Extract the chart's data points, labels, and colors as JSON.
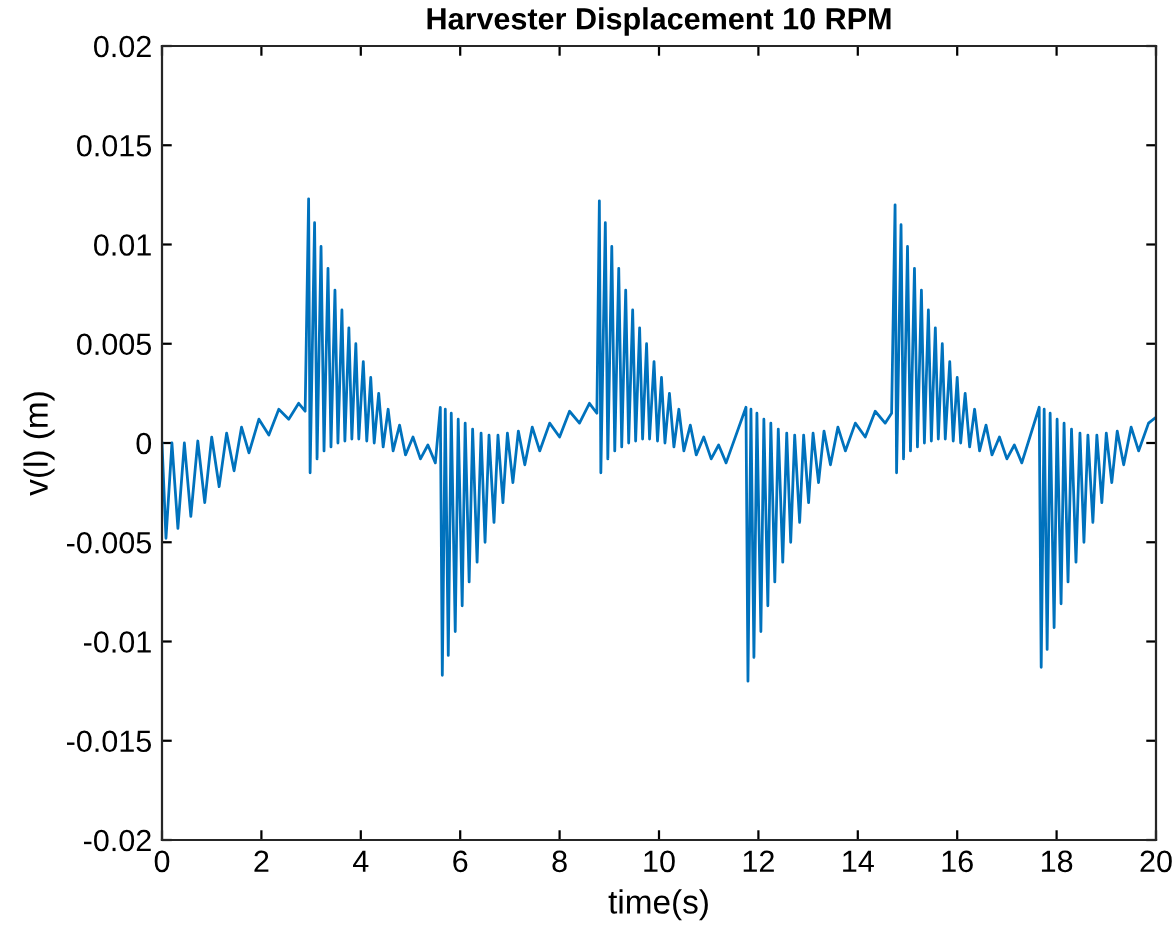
{
  "chart_data": {
    "type": "line",
    "title": "Harvester Displacement 10 RPM",
    "xlabel": "time(s)",
    "ylabel": "v(l) (m)",
    "xlim": [
      0,
      20
    ],
    "ylim": [
      -0.02,
      0.02
    ],
    "xticks": [
      0,
      2,
      4,
      6,
      8,
      10,
      12,
      14,
      16,
      18,
      20
    ],
    "yticks": [
      {
        "value": -0.02,
        "label": "-0.02"
      },
      {
        "value": -0.015,
        "label": "-0.015"
      },
      {
        "value": -0.01,
        "label": "-0.01"
      },
      {
        "value": -0.005,
        "label": "-0.005"
      },
      {
        "value": 0,
        "label": "0"
      },
      {
        "value": 0.005,
        "label": "0.005"
      },
      {
        "value": 0.01,
        "label": "0.01"
      },
      {
        "value": 0.015,
        "label": "0.015"
      },
      {
        "value": 0.02,
        "label": "0.02"
      }
    ],
    "grid": false,
    "marker": "none",
    "line_style": "solid",
    "series": [
      {
        "color": "#0072bd",
        "x": [
          0,
          0.08,
          0.2,
          0.32,
          0.45,
          0.58,
          0.72,
          0.86,
          1.0,
          1.15,
          1.3,
          1.45,
          1.6,
          1.75,
          1.95,
          2.15,
          2.35,
          2.55,
          2.75,
          2.88,
          2.95,
          2.98,
          3.07,
          3.12,
          3.2,
          3.26,
          3.34,
          3.4,
          3.48,
          3.54,
          3.62,
          3.68,
          3.76,
          3.82,
          3.9,
          3.96,
          4.05,
          4.12,
          4.2,
          4.27,
          4.36,
          4.45,
          4.55,
          4.65,
          4.78,
          4.9,
          5.05,
          5.2,
          5.35,
          5.5,
          5.6,
          5.64,
          5.7,
          5.76,
          5.82,
          5.9,
          5.96,
          6.04,
          6.1,
          6.18,
          6.25,
          6.34,
          6.42,
          6.5,
          6.58,
          6.68,
          6.76,
          6.86,
          6.95,
          7.06,
          7.17,
          7.3,
          7.45,
          7.6,
          7.8,
          8.0,
          8.2,
          8.4,
          8.6,
          8.75,
          8.8,
          8.83,
          8.92,
          8.97,
          9.05,
          9.11,
          9.19,
          9.25,
          9.33,
          9.39,
          9.47,
          9.53,
          9.61,
          9.67,
          9.75,
          9.81,
          9.9,
          9.97,
          10.05,
          10.12,
          10.21,
          10.3,
          10.4,
          10.5,
          10.63,
          10.75,
          10.9,
          11.05,
          11.2,
          11.35,
          11.75,
          11.79,
          11.85,
          11.91,
          11.97,
          12.05,
          12.11,
          12.19,
          12.25,
          12.33,
          12.4,
          12.49,
          12.57,
          12.65,
          12.73,
          12.83,
          12.91,
          13.01,
          13.1,
          13.21,
          13.32,
          13.45,
          13.6,
          13.75,
          13.95,
          14.15,
          14.35,
          14.55,
          14.68,
          14.75,
          14.78,
          14.87,
          14.92,
          15.0,
          15.06,
          15.14,
          15.2,
          15.28,
          15.34,
          15.42,
          15.48,
          15.56,
          15.62,
          15.7,
          15.76,
          15.85,
          15.92,
          16.0,
          16.07,
          16.16,
          16.25,
          16.35,
          16.45,
          16.58,
          16.7,
          16.85,
          17.0,
          17.15,
          17.3,
          17.65,
          17.69,
          17.75,
          17.81,
          17.87,
          17.95,
          18.01,
          18.09,
          18.15,
          18.23,
          18.3,
          18.39,
          18.47,
          18.55,
          18.63,
          18.73,
          18.81,
          18.91,
          19.0,
          19.11,
          19.22,
          19.35,
          19.5,
          19.65,
          19.85,
          20.0
        ],
        "values": [
          0,
          -0.0048,
          0,
          -0.0043,
          0,
          -0.0037,
          0.0001,
          -0.003,
          0.0003,
          -0.0022,
          0.0005,
          -0.0014,
          0.0008,
          -0.0005,
          0.0012,
          0.0004,
          0.0017,
          0.0012,
          0.002,
          0.0016,
          0.0123,
          -0.0015,
          0.0111,
          -0.0008,
          0.0099,
          -0.0004,
          0.0088,
          -0.0002,
          0.0077,
          0,
          0.0067,
          0.0001,
          0.0058,
          0.0002,
          0.005,
          0.0002,
          0.0041,
          0.0001,
          0.0033,
          0,
          0.0025,
          -0.0002,
          0.0017,
          -0.0004,
          0.0009,
          -0.0006,
          0.0003,
          -0.0008,
          -0.0001,
          -0.001,
          0.0018,
          -0.0117,
          0.0017,
          -0.0107,
          0.0015,
          -0.0095,
          0.0012,
          -0.0082,
          0.001,
          -0.007,
          0.0007,
          -0.006,
          0.0005,
          -0.005,
          0.0004,
          -0.004,
          0.0004,
          -0.003,
          0.0005,
          -0.002,
          0.0006,
          -0.0011,
          0.0008,
          -0.0004,
          0.001,
          0.0003,
          0.0016,
          0.001,
          0.002,
          0.0015,
          0.0122,
          -0.0015,
          0.0111,
          -0.0008,
          0.0099,
          -0.0004,
          0.0088,
          -0.0002,
          0.0077,
          0,
          0.0067,
          0.0001,
          0.0058,
          0.0002,
          0.005,
          0.0002,
          0.0041,
          0.0001,
          0.0033,
          0,
          0.0025,
          -0.0002,
          0.0017,
          -0.0004,
          0.0009,
          -0.0006,
          0.0003,
          -0.0008,
          -0.0001,
          -0.001,
          0.0018,
          -0.012,
          0.0017,
          -0.0108,
          0.0015,
          -0.0095,
          0.0012,
          -0.0082,
          0.001,
          -0.007,
          0.0007,
          -0.006,
          0.0005,
          -0.005,
          0.0004,
          -0.004,
          0.0004,
          -0.003,
          0.0005,
          -0.002,
          0.0006,
          -0.0011,
          0.0008,
          -0.0004,
          0.001,
          0.0003,
          0.0016,
          0.001,
          0.0015,
          0.012,
          -0.0015,
          0.011,
          -0.0008,
          0.0099,
          -0.0004,
          0.0088,
          -0.0002,
          0.0077,
          0,
          0.0067,
          0.0001,
          0.0058,
          0.0002,
          0.005,
          0.0002,
          0.0041,
          0.0001,
          0.0033,
          0,
          0.0025,
          -0.0002,
          0.0017,
          -0.0004,
          0.0009,
          -0.0006,
          0.0003,
          -0.0008,
          -0.0001,
          -0.001,
          0.0018,
          -0.0113,
          0.0017,
          -0.0104,
          0.0015,
          -0.0093,
          0.0012,
          -0.0081,
          0.001,
          -0.007,
          0.0007,
          -0.006,
          0.0005,
          -0.005,
          0.0004,
          -0.004,
          0.0004,
          -0.003,
          0.0005,
          -0.002,
          0.0006,
          -0.0011,
          0.0008,
          -0.0004,
          0.001,
          0.0013
        ]
      }
    ]
  }
}
